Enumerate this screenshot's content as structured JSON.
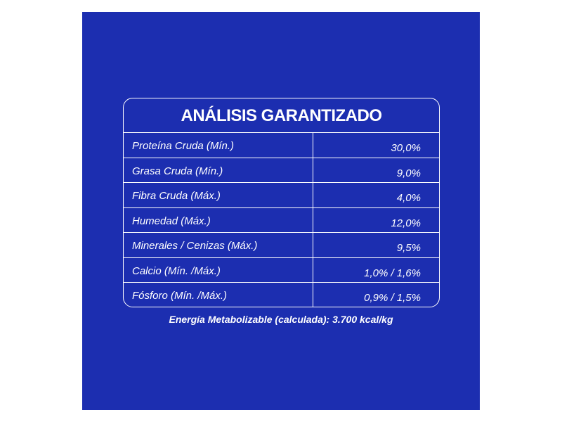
{
  "table": {
    "title": "ANÁLISIS GARANTIZADO",
    "rows": [
      {
        "label": "Proteína Cruda (Mín.)",
        "value": "30,0%"
      },
      {
        "label": "Grasa Cruda (Mín.)",
        "value": "9,0%"
      },
      {
        "label": "Fibra Cruda (Máx.)",
        "value": "4,0%"
      },
      {
        "label": "Humedad (Máx.)",
        "value": "12,0%"
      },
      {
        "label": "Minerales / Cenizas (Máx.)",
        "value": "9,5%"
      },
      {
        "label": "Calcio (Mín. /Máx.)",
        "value": "1,0% / 1,6%"
      },
      {
        "label": "Fósforo (Mín. /Máx.)",
        "value": "0,9% / 1,5%"
      }
    ]
  },
  "footnote": "Energía Metabolizable (calculada): 3.700 kcal/kg",
  "colors": {
    "background": "#1c2eb0",
    "text": "#ffffff"
  }
}
